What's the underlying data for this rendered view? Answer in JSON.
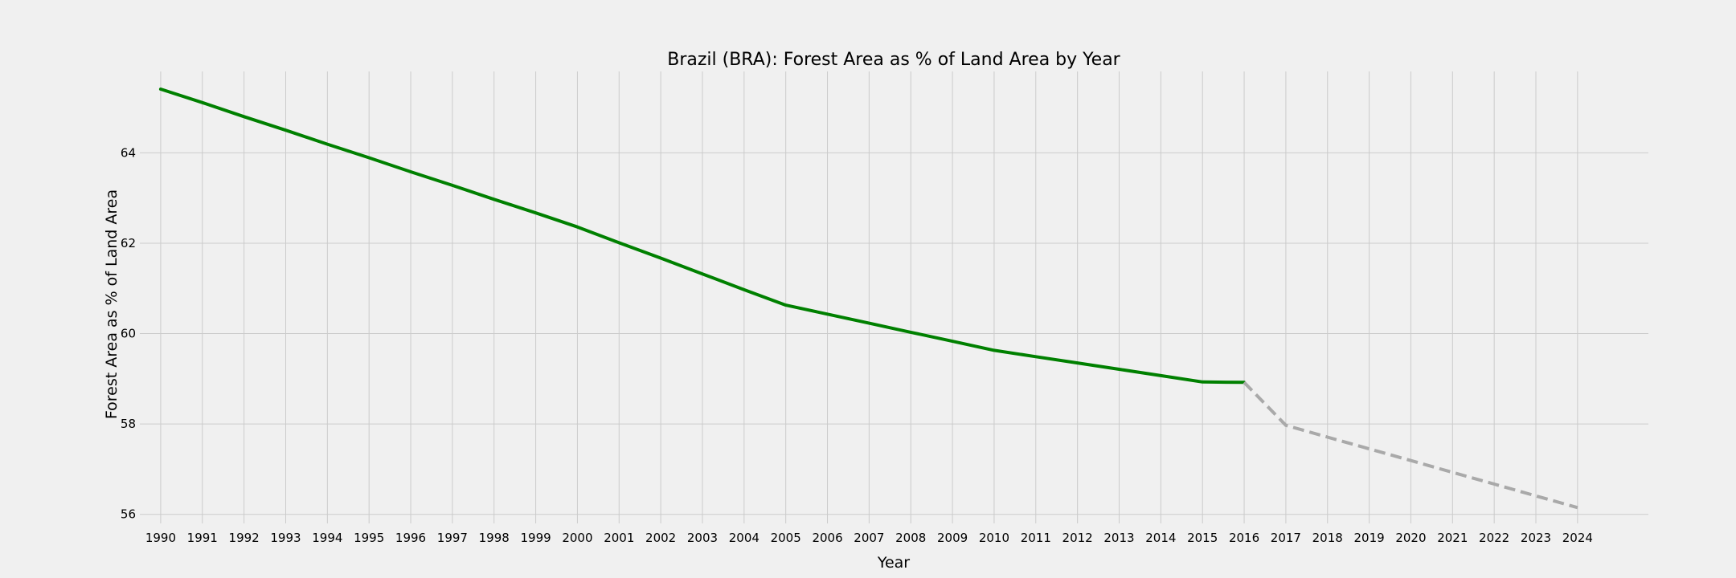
{
  "chart_data": {
    "type": "line",
    "title": "Brazil (BRA): Forest Area as % of Land Area by Year",
    "xlabel": "Year",
    "ylabel": "Forest Area as % of Land Area",
    "x_ticks": [
      "1990",
      "1991",
      "1992",
      "1993",
      "1994",
      "1995",
      "1996",
      "1997",
      "1998",
      "1999",
      "2000",
      "2001",
      "2002",
      "2003",
      "2004",
      "2005",
      "2006",
      "2007",
      "2008",
      "2009",
      "2010",
      "2011",
      "2012",
      "2013",
      "2014",
      "2015",
      "2016",
      "2017",
      "2018",
      "2019",
      "2020",
      "2021",
      "2022",
      "2023",
      "2024"
    ],
    "y_ticks": [
      "56",
      "58",
      "60",
      "62",
      "64"
    ],
    "xlim": [
      1989.5,
      2025.7
    ],
    "ylim": [
      55.8,
      65.8
    ],
    "grid": true,
    "colors": {
      "background": "#f0f0f0",
      "grid": "#cbcbcb",
      "historical": "#008000",
      "projected": "#a9a9a9"
    },
    "series": [
      {
        "style": "solid",
        "x": [
          1990,
          1991,
          1992,
          1993,
          1994,
          1995,
          1996,
          1997,
          1998,
          1999,
          2000,
          2001,
          2002,
          2003,
          2004,
          2005,
          2006,
          2007,
          2008,
          2009,
          2010,
          2011,
          2012,
          2013,
          2014,
          2015,
          2016
        ],
        "y": [
          65.41,
          65.11,
          64.8,
          64.5,
          64.19,
          63.89,
          63.58,
          63.28,
          62.97,
          62.67,
          62.36,
          62.01,
          61.67,
          61.32,
          60.97,
          60.63,
          60.43,
          60.23,
          60.03,
          59.83,
          59.63,
          59.49,
          59.35,
          59.21,
          59.07,
          58.93,
          58.92
        ]
      },
      {
        "style": "dashed",
        "x": [
          2016,
          2017,
          2018,
          2019,
          2020,
          2021,
          2022,
          2023,
          2024
        ],
        "y": [
          58.92,
          57.97,
          57.71,
          57.45,
          57.19,
          56.93,
          56.67,
          56.41,
          56.15
        ]
      }
    ]
  }
}
